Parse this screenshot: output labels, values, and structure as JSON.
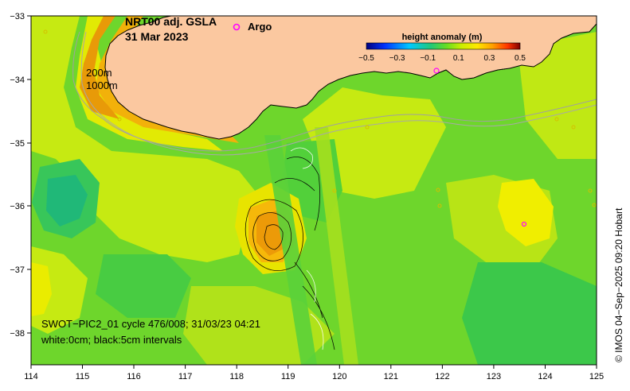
{
  "title": {
    "line1": "NRT00 adj. GSLA",
    "line2": "31 Mar 2023"
  },
  "legend": {
    "argo_symbol": "o",
    "argo_label": "Argo",
    "argo_color": "#ff00ff"
  },
  "colorbar": {
    "title": "height anomaly (m)",
    "ticks": [
      "−0.5",
      "−0.3",
      "−0.1",
      "0.1",
      "0.3",
      "0.5"
    ],
    "colors": [
      "#00007f",
      "#0044ff",
      "#00b4ff",
      "#22c878",
      "#55dd22",
      "#c8ee00",
      "#ffe800",
      "#ffa000",
      "#ff4400",
      "#7f0000"
    ]
  },
  "depth_labels": {
    "d200": "200m",
    "d1000": "1000m"
  },
  "swot_note": {
    "line1": "SWOT−PIC2_01 cycle 476/008; 31/03/23 04:21",
    "line2": "white:0cm; black:5cm intervals"
  },
  "credit": "© IMOS 04−Sep−2025 09:20 Hobart",
  "axes": {
    "x_ticks": [
      "114",
      "115",
      "116",
      "117",
      "118",
      "119",
      "120",
      "121",
      "122",
      "123",
      "124",
      "125"
    ],
    "y_ticks": [
      "−33",
      "−34",
      "−35",
      "−36",
      "−37",
      "−38"
    ]
  },
  "colors": {
    "land": "#fbc8a0",
    "ocean_base": "#6ed62c"
  }
}
